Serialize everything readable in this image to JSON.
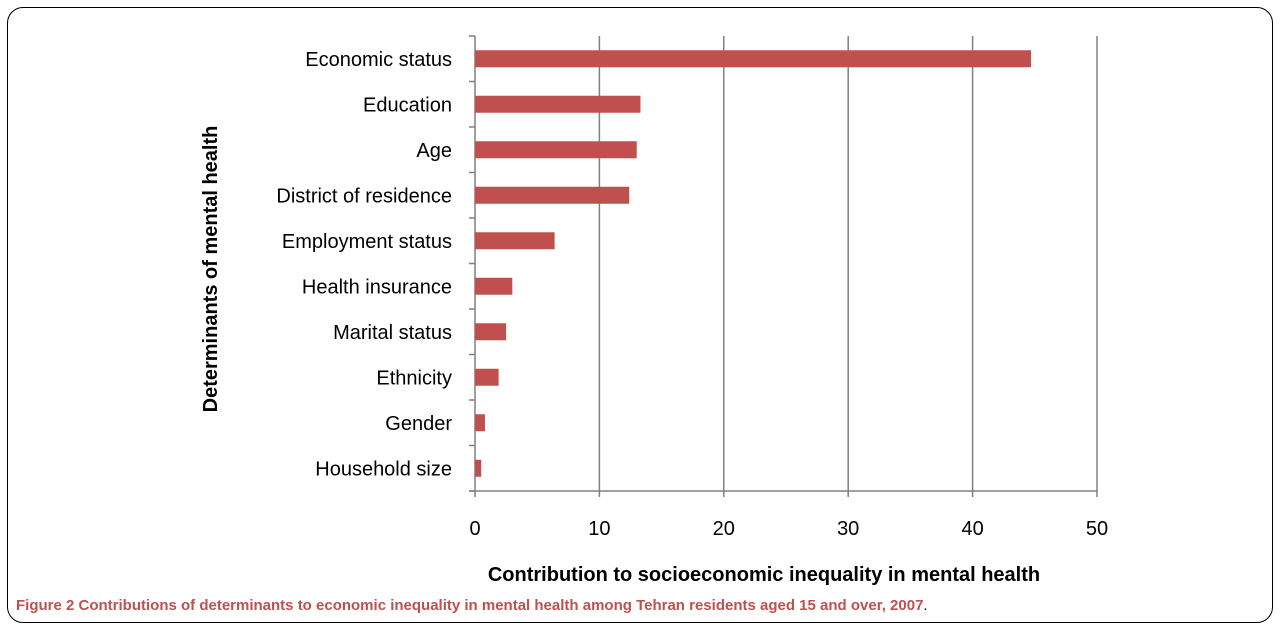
{
  "chart_data": {
    "type": "bar",
    "orientation": "horizontal",
    "categories": [
      "Economic status",
      "Education",
      "Age",
      "District of residence",
      "Employment status",
      "Health insurance",
      "Marital status",
      "Ethnicity",
      "Gender",
      "Household size"
    ],
    "values": [
      44.7,
      13.3,
      13.0,
      12.4,
      6.4,
      3.0,
      2.5,
      1.9,
      0.8,
      0.5
    ],
    "xlabel": "Contribution to socioeconomic inequality in mental health",
    "ylabel": "Determinants of mental health",
    "xlim": [
      0,
      50
    ],
    "xticks": [
      "0",
      "10",
      "20",
      "30",
      "40",
      "50"
    ],
    "grid": "vertical",
    "bar_color": "#c0504d"
  },
  "caption": {
    "label": "Figure 2",
    "text": " Contributions of determinants to economic inequality in mental health among Tehran residents aged 15 and over, 2007",
    "end": "."
  }
}
